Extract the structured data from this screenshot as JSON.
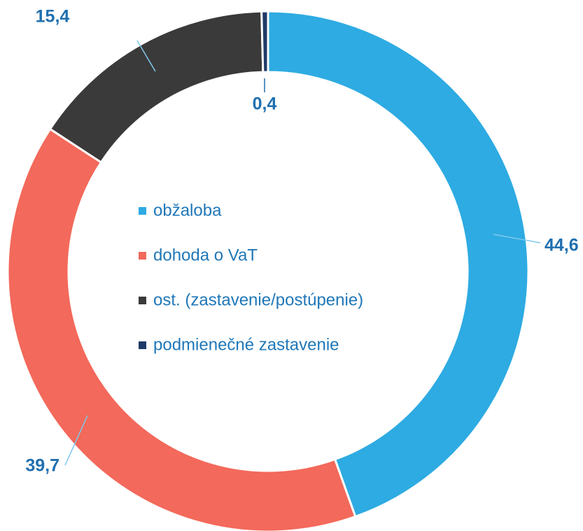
{
  "chart_data": {
    "type": "donut",
    "categories": [
      "obžaloba",
      "dohoda o VaT",
      "ost. (zastavenie/postúpenie)",
      "podmienečné zastavenie"
    ],
    "values": [
      44.6,
      39.7,
      15.4,
      0.4
    ],
    "value_labels": [
      "44,6",
      "39,7",
      "15,4",
      "0,4"
    ],
    "colors": [
      "#2eabe2",
      "#f3695b",
      "#3a3a3a",
      "#1e3a68"
    ],
    "legend": "center"
  }
}
